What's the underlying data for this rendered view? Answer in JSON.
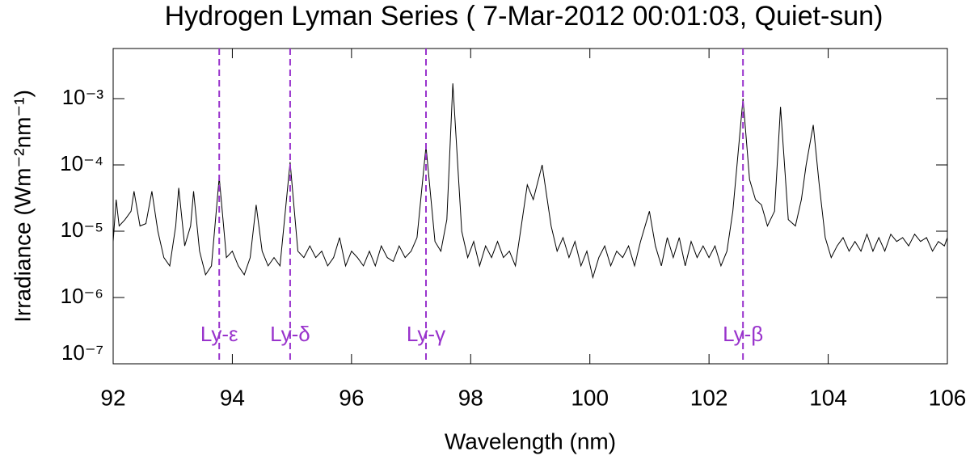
{
  "chart_data": {
    "type": "line",
    "title": "Hydrogen Lyman Series ( 7-Mar-2012 00:01:03, Quiet-sun)",
    "x_label": "Wavelength (nm)",
    "y_label": "Irradiance (Wm⁻²nm⁻¹)",
    "log_y": true,
    "xlim": [
      92,
      106
    ],
    "xticks": [
      92,
      94,
      96,
      98,
      100,
      102,
      104,
      106
    ],
    "ylim": [
      1e-07,
      0.0057
    ],
    "yticks": [
      {
        "value": 1e-07,
        "label": "10⁻⁷"
      },
      {
        "value": 1e-06,
        "label": "10⁻⁶"
      },
      {
        "value": 1e-05,
        "label": "10⁻⁵"
      },
      {
        "value": 0.0001,
        "label": "10⁻⁴"
      },
      {
        "value": 0.001,
        "label": "10⁻³"
      }
    ],
    "x": [
      92.0,
      92.05,
      92.1,
      92.2,
      92.3,
      92.35,
      92.45,
      92.55,
      92.65,
      92.75,
      92.85,
      92.95,
      93.05,
      93.1,
      93.2,
      93.3,
      93.35,
      93.45,
      93.55,
      93.65,
      93.78,
      93.9,
      94.0,
      94.1,
      94.2,
      94.3,
      94.4,
      94.5,
      94.6,
      94.7,
      94.8,
      94.97,
      95.1,
      95.2,
      95.3,
      95.4,
      95.5,
      95.6,
      95.7,
      95.8,
      95.9,
      96.0,
      96.1,
      96.2,
      96.3,
      96.4,
      96.5,
      96.6,
      96.7,
      96.8,
      96.9,
      97.0,
      97.1,
      97.25,
      97.4,
      97.5,
      97.6,
      97.7,
      97.85,
      97.95,
      98.05,
      98.15,
      98.25,
      98.35,
      98.45,
      98.55,
      98.65,
      98.75,
      98.85,
      98.95,
      99.05,
      99.2,
      99.35,
      99.45,
      99.55,
      99.65,
      99.75,
      99.85,
      99.95,
      100.05,
      100.15,
      100.25,
      100.35,
      100.45,
      100.55,
      100.65,
      100.75,
      100.85,
      101.0,
      101.1,
      101.2,
      101.3,
      101.4,
      101.5,
      101.6,
      101.7,
      101.8,
      101.9,
      102.0,
      102.1,
      102.2,
      102.3,
      102.4,
      102.57,
      102.68,
      102.78,
      102.88,
      102.98,
      103.1,
      103.2,
      103.33,
      103.45,
      103.55,
      103.63,
      103.75,
      103.85,
      103.95,
      104.05,
      104.15,
      104.25,
      104.35,
      104.45,
      104.55,
      104.65,
      104.75,
      104.85,
      104.95,
      105.05,
      105.15,
      105.25,
      105.35,
      105.45,
      105.55,
      105.65,
      105.75,
      105.85,
      105.95,
      106.0
    ],
    "series": [
      {
        "color": "#000000",
        "values": [
          7e-06,
          3e-05,
          1.2e-05,
          1.5e-05,
          2e-05,
          4e-05,
          1.2e-05,
          1.3e-05,
          4e-05,
          1e-05,
          4e-06,
          3e-06,
          1.2e-05,
          4.5e-05,
          6e-06,
          1.2e-05,
          4e-05,
          5e-06,
          2.2e-06,
          3e-06,
          6.5e-05,
          4e-06,
          5e-06,
          3e-06,
          2.2e-06,
          4e-06,
          2.5e-05,
          5e-06,
          3e-06,
          4e-06,
          3e-06,
          0.00011,
          5e-06,
          4e-06,
          6e-06,
          4e-06,
          5e-06,
          3e-06,
          4e-06,
          8e-06,
          3e-06,
          5e-06,
          4e-06,
          3e-06,
          5e-06,
          3e-06,
          6e-06,
          4e-06,
          3.5e-06,
          6e-06,
          4e-06,
          5e-06,
          8e-06,
          0.00019,
          7e-06,
          5e-06,
          1.5e-05,
          0.0017,
          1e-05,
          4e-06,
          7e-06,
          3e-06,
          6e-06,
          4e-06,
          7e-06,
          4e-06,
          5e-06,
          3e-06,
          1.2e-05,
          5e-05,
          3e-05,
          0.0001,
          1.2e-05,
          5e-06,
          8e-06,
          4e-06,
          7e-06,
          3e-06,
          5e-06,
          2e-06,
          4e-06,
          6e-06,
          3e-06,
          5e-06,
          4e-06,
          6e-06,
          3e-06,
          7e-06,
          2e-05,
          6e-06,
          3e-06,
          8e-06,
          4e-06,
          8e-06,
          3e-06,
          7e-06,
          4e-06,
          6e-06,
          4e-06,
          6e-06,
          3e-06,
          5e-06,
          2e-05,
          0.001,
          6e-05,
          3e-05,
          2.5e-05,
          1.2e-05,
          2e-05,
          0.00075,
          1.5e-05,
          1.2e-05,
          3e-05,
          0.0001,
          0.0004,
          5e-05,
          8e-06,
          4e-06,
          6e-06,
          8e-06,
          5e-06,
          7e-06,
          5e-06,
          9e-06,
          5e-06,
          8e-06,
          5e-06,
          9e-06,
          7e-06,
          8e-06,
          6e-06,
          9e-06,
          7e-06,
          8e-06,
          5e-06,
          7e-06,
          6e-06,
          8e-06
        ]
      }
    ],
    "annotations": [
      {
        "x": 93.78,
        "label": "Ly-ε"
      },
      {
        "x": 94.97,
        "label": "Ly-δ"
      },
      {
        "x": 97.25,
        "label": "Ly-γ"
      },
      {
        "x": 102.57,
        "label": "Ly-β"
      }
    ],
    "annotation_color": "#9933cc"
  }
}
